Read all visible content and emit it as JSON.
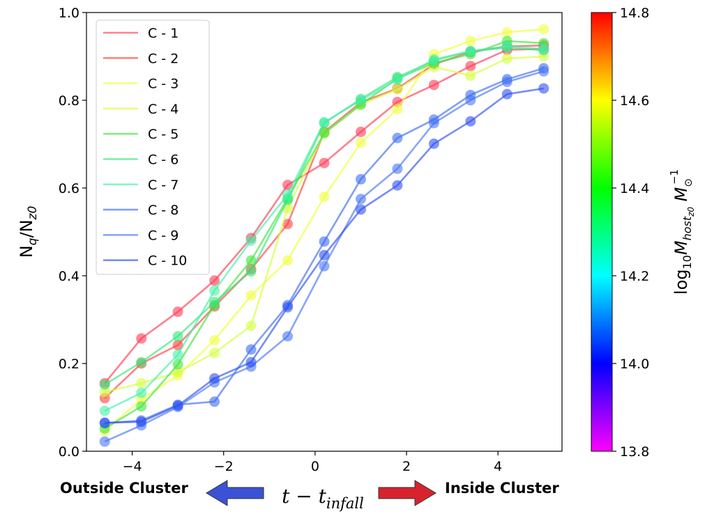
{
  "chart_data": {
    "type": "line",
    "ylabel": "N_q/N_z0",
    "xlabel": "t − t_infall",
    "xlim": [
      -5,
      5.4
    ],
    "ylim": [
      0.0,
      1.0
    ],
    "x_ticks": [
      -4,
      -2,
      0,
      2,
      4
    ],
    "y_ticks": [
      0.0,
      0.2,
      0.4,
      0.6,
      0.8,
      1.0
    ],
    "grid": false,
    "legend_position": "upper-left",
    "x": [
      -4.6,
      -3.8,
      -3.0,
      -2.2,
      -1.4,
      -0.6,
      0.2,
      1.0,
      1.8,
      2.6,
      3.4,
      4.2,
      5.0
    ],
    "series": [
      {
        "name": "C - 1",
        "color": "#ff3b55",
        "values": [
          0.155,
          0.257,
          0.318,
          0.389,
          0.486,
          0.607,
          0.657,
          0.728,
          0.796,
          0.835,
          0.878,
          0.915,
          0.917
        ]
      },
      {
        "name": "C - 2",
        "color": "#ff4040",
        "values": [
          0.121,
          0.2,
          0.242,
          0.33,
          0.415,
          0.518,
          0.728,
          0.795,
          0.827,
          0.882,
          0.91,
          0.923,
          0.925
        ]
      },
      {
        "name": "C - 3",
        "color": "#f0ff3a",
        "values": [
          0.047,
          0.118,
          0.173,
          0.253,
          0.355,
          0.435,
          0.58,
          0.703,
          0.78,
          0.905,
          0.935,
          0.955,
          0.962
        ]
      },
      {
        "name": "C - 4",
        "color": "#d4ff3a",
        "values": [
          0.135,
          0.155,
          0.18,
          0.224,
          0.286,
          0.553,
          0.725,
          0.79,
          0.825,
          0.876,
          0.856,
          0.895,
          0.9
        ]
      },
      {
        "name": "C - 5",
        "color": "#3ce63c",
        "values": [
          0.052,
          0.102,
          0.198,
          0.333,
          0.435,
          0.576,
          0.725,
          0.79,
          0.85,
          0.885,
          0.905,
          0.935,
          0.93
        ]
      },
      {
        "name": "C - 6",
        "color": "#32e87a",
        "values": [
          0.152,
          0.203,
          0.262,
          0.34,
          0.41,
          0.573,
          0.748,
          0.803,
          0.853,
          0.89,
          0.912,
          0.92,
          0.914
        ]
      },
      {
        "name": "C - 7",
        "color": "#44f0a8",
        "values": [
          0.092,
          0.133,
          0.22,
          0.366,
          0.48,
          0.585,
          0.75,
          0.8,
          0.847,
          0.893,
          0.912,
          0.923,
          0.917
        ]
      },
      {
        "name": "C - 8",
        "color": "#3c6cf0",
        "values": [
          0.064,
          0.07,
          0.106,
          0.113,
          0.232,
          0.333,
          0.478,
          0.62,
          0.714,
          0.756,
          0.812,
          0.848,
          0.873
        ]
      },
      {
        "name": "C - 9",
        "color": "#4876f5",
        "values": [
          0.022,
          0.059,
          0.101,
          0.157,
          0.193,
          0.262,
          0.422,
          0.575,
          0.644,
          0.748,
          0.8,
          0.842,
          0.866
        ]
      },
      {
        "name": "C - 10",
        "color": "#2e50f0",
        "values": [
          0.065,
          0.067,
          0.104,
          0.166,
          0.203,
          0.328,
          0.447,
          0.551,
          0.606,
          0.701,
          0.752,
          0.814,
          0.827
        ]
      }
    ],
    "colorbar": {
      "label": "log10 M_host_z0 M_⊙^−1",
      "range": [
        13.8,
        14.8
      ],
      "ticks": [
        "13.8",
        "14.0",
        "14.2",
        "14.4",
        "14.6",
        "14.8"
      ],
      "stops": [
        "#ff00ff",
        "#0000ff",
        "#00ffff",
        "#00ff00",
        "#ffff00",
        "#ff0000"
      ]
    }
  },
  "annotations": {
    "left": "Outside Cluster",
    "right": "Inside Cluster",
    "left_arrow_color": "#3a52d6",
    "right_arrow_color": "#d6232e"
  }
}
